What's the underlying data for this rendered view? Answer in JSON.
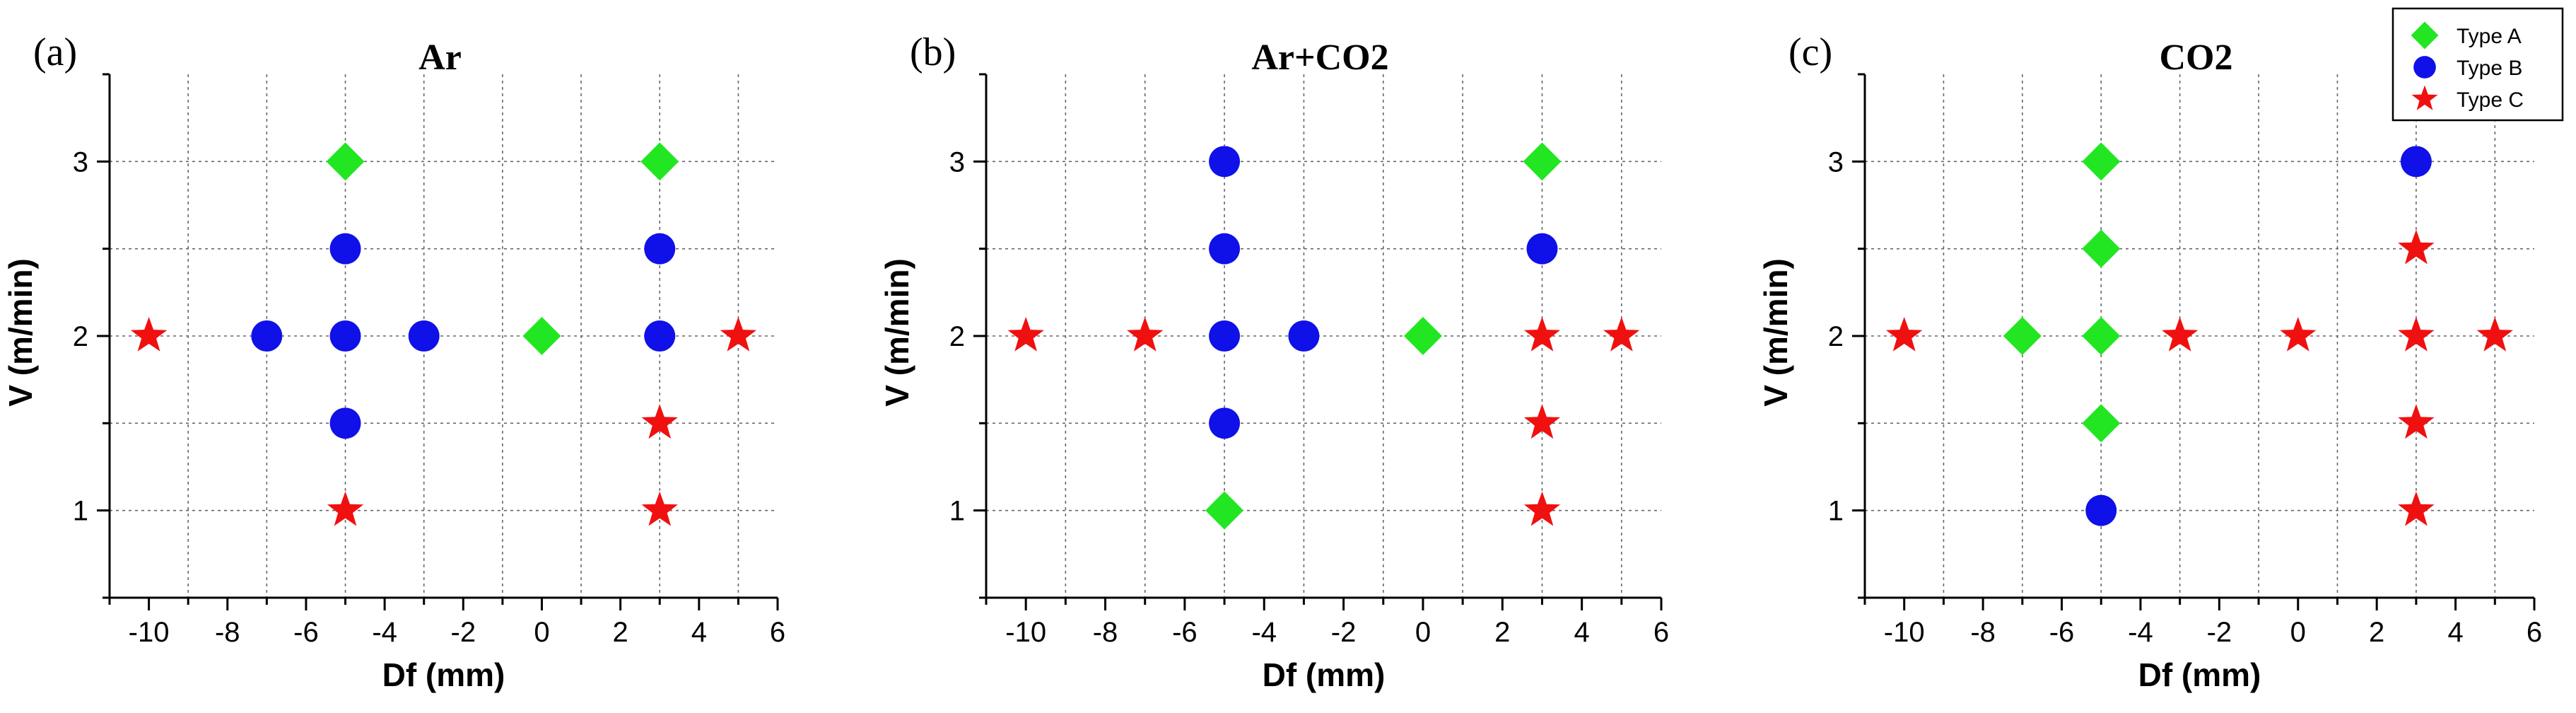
{
  "chart_data": [
    {
      "type": "scatter",
      "letter": "(a)",
      "title": "Ar",
      "xlabel": "Df (mm)",
      "ylabel": "V (m/min)",
      "xlim": [
        -11,
        6
      ],
      "ylim": [
        0.5,
        3.5
      ],
      "xticks": [
        -10,
        -8,
        -6,
        -4,
        -2,
        0,
        2,
        4,
        6
      ],
      "yticks": [
        1,
        2,
        3
      ],
      "grid": true,
      "series": [
        {
          "name": "Type A",
          "marker": "diamond",
          "color": "#22e622",
          "points": [
            [
              -5,
              3
            ],
            [
              3,
              3
            ],
            [
              0,
              2
            ]
          ]
        },
        {
          "name": "Type B",
          "marker": "circle",
          "color": "#1010e8",
          "points": [
            [
              -5,
              2.5
            ],
            [
              3,
              2.5
            ],
            [
              -7,
              2
            ],
            [
              -5,
              2
            ],
            [
              -3,
              2
            ],
            [
              3,
              2
            ],
            [
              -5,
              1.5
            ]
          ]
        },
        {
          "name": "Type C",
          "marker": "star",
          "color": "#f01010",
          "points": [
            [
              -10,
              2
            ],
            [
              5,
              2
            ],
            [
              3,
              1.5
            ],
            [
              -5,
              1
            ],
            [
              3,
              1
            ]
          ]
        }
      ]
    },
    {
      "type": "scatter",
      "letter": "(b)",
      "title": "Ar+CO2",
      "xlabel": "Df (mm)",
      "ylabel": "V (m/min)",
      "xlim": [
        -11,
        6
      ],
      "ylim": [
        0.5,
        3.5
      ],
      "xticks": [
        -10,
        -8,
        -6,
        -4,
        -2,
        0,
        2,
        4,
        6
      ],
      "yticks": [
        1,
        2,
        3
      ],
      "grid": true,
      "series": [
        {
          "name": "Type A",
          "marker": "diamond",
          "color": "#22e622",
          "points": [
            [
              3,
              3
            ],
            [
              0,
              2
            ],
            [
              -5,
              1
            ]
          ]
        },
        {
          "name": "Type B",
          "marker": "circle",
          "color": "#1010e8",
          "points": [
            [
              -5,
              3
            ],
            [
              -5,
              2.5
            ],
            [
              3,
              2.5
            ],
            [
              -5,
              2
            ],
            [
              -3,
              2
            ],
            [
              -5,
              1.5
            ]
          ]
        },
        {
          "name": "Type C",
          "marker": "star",
          "color": "#f01010",
          "points": [
            [
              -10,
              2
            ],
            [
              -7,
              2
            ],
            [
              3,
              2
            ],
            [
              5,
              2
            ],
            [
              3,
              1.5
            ],
            [
              3,
              1
            ]
          ]
        }
      ]
    },
    {
      "type": "scatter",
      "letter": "(c)",
      "title": "CO2",
      "xlabel": "Df (mm)",
      "ylabel": "V (m/min)",
      "xlim": [
        -11,
        6
      ],
      "ylim": [
        0.5,
        3.5
      ],
      "xticks": [
        -10,
        -8,
        -6,
        -4,
        -2,
        0,
        2,
        4,
        6
      ],
      "yticks": [
        1,
        2,
        3
      ],
      "grid": true,
      "legend_position": "top-right",
      "series": [
        {
          "name": "Type A",
          "marker": "diamond",
          "color": "#22e622",
          "points": [
            [
              -5,
              3
            ],
            [
              -5,
              2.5
            ],
            [
              -7,
              2
            ],
            [
              -5,
              2
            ],
            [
              -5,
              1.5
            ]
          ]
        },
        {
          "name": "Type B",
          "marker": "circle",
          "color": "#1010e8",
          "points": [
            [
              3,
              3
            ],
            [
              -5,
              1
            ]
          ]
        },
        {
          "name": "Type C",
          "marker": "star",
          "color": "#f01010",
          "points": [
            [
              3,
              2.5
            ],
            [
              -10,
              2
            ],
            [
              -3,
              2
            ],
            [
              0,
              2
            ],
            [
              3,
              2
            ],
            [
              5,
              2
            ],
            [
              3,
              1.5
            ],
            [
              3,
              1
            ]
          ]
        }
      ]
    }
  ],
  "legend": {
    "entries": [
      {
        "label": "Type A",
        "marker": "diamond",
        "color": "#22e622"
      },
      {
        "label": "Type B",
        "marker": "circle",
        "color": "#1010e8"
      },
      {
        "label": "Type C",
        "marker": "star",
        "color": "#f01010"
      }
    ]
  }
}
